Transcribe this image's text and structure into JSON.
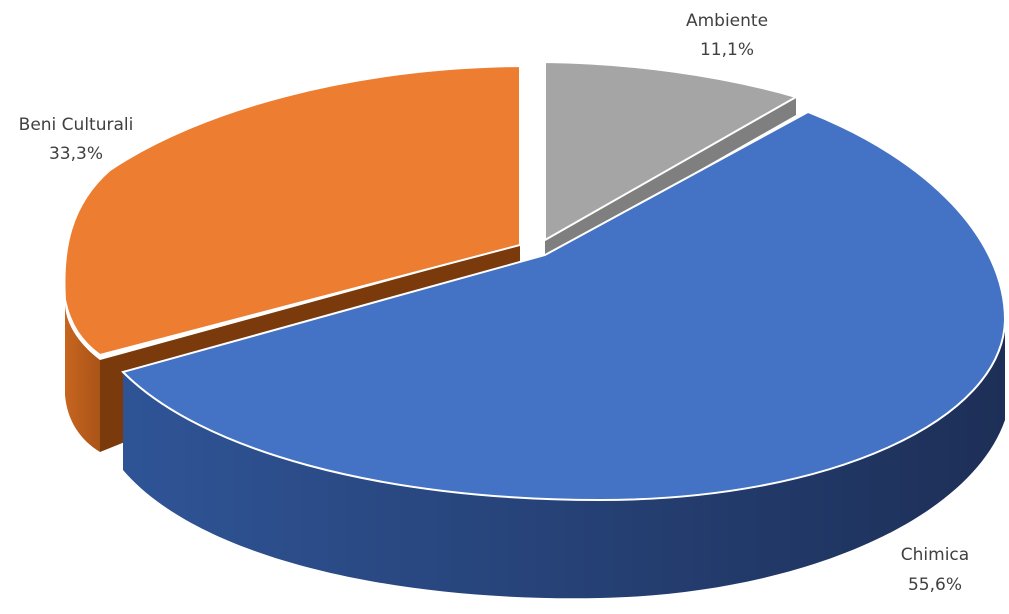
{
  "chart_data": {
    "type": "pie",
    "style": "3d-exploded",
    "slices": [
      {
        "label": "Chimica",
        "value": 55.6,
        "display": "55,6%",
        "color": "#4472C4"
      },
      {
        "label": "Beni Culturali",
        "value": 33.3,
        "display": "33,3%",
        "color": "#ED7D31"
      },
      {
        "label": "Ambiente",
        "value": 11.1,
        "display": "11,1%",
        "color": "#A5A5A5"
      }
    ]
  }
}
